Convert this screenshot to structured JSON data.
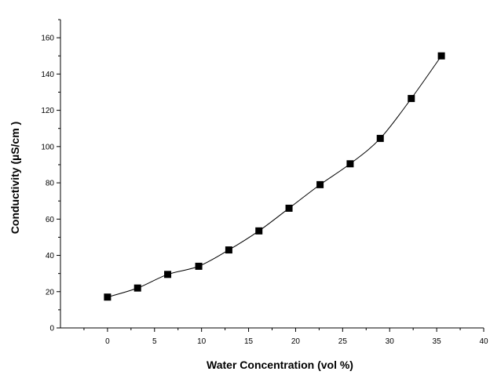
{
  "chart_data": {
    "type": "line",
    "title": "",
    "xlabel": "Water Concentration (vol %)",
    "ylabel": "Conductivity (µS/cm )",
    "xlim": [
      -5,
      40
    ],
    "ylim": [
      0,
      170
    ],
    "xticks": [
      0,
      5,
      10,
      15,
      20,
      25,
      30,
      35,
      40
    ],
    "yticks": [
      0,
      20,
      40,
      60,
      80,
      100,
      120,
      140,
      160
    ],
    "grid": false,
    "legend": "none",
    "series": [
      {
        "marker": "square",
        "color": "#000000",
        "x": [
          0,
          3.2,
          6.4,
          9.7,
          12.9,
          16.1,
          19.3,
          22.6,
          25.8,
          29.0,
          32.3,
          35.5
        ],
        "y": [
          17,
          22,
          29.5,
          34,
          43,
          53.5,
          66,
          79,
          90.5,
          104.5,
          126.5,
          150
        ]
      }
    ]
  }
}
